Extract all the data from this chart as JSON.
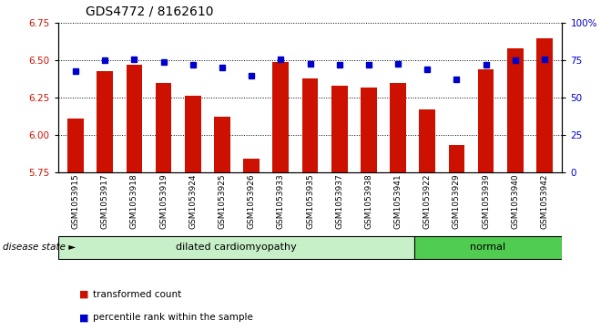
{
  "title": "GDS4772 / 8162610",
  "samples": [
    "GSM1053915",
    "GSM1053917",
    "GSM1053918",
    "GSM1053919",
    "GSM1053924",
    "GSM1053925",
    "GSM1053926",
    "GSM1053933",
    "GSM1053935",
    "GSM1053937",
    "GSM1053938",
    "GSM1053941",
    "GSM1053922",
    "GSM1053929",
    "GSM1053939",
    "GSM1053940",
    "GSM1053942"
  ],
  "bar_values": [
    6.11,
    6.43,
    6.47,
    6.35,
    6.26,
    6.12,
    5.84,
    6.49,
    6.38,
    6.33,
    6.32,
    6.35,
    6.17,
    5.93,
    6.44,
    6.58,
    6.65
  ],
  "dot_percentiles": [
    68,
    75,
    76,
    74,
    72,
    70,
    65,
    76,
    73,
    72,
    72,
    73,
    69,
    62,
    72,
    75,
    76
  ],
  "group_labels": [
    "dilated cardiomyopathy",
    "normal"
  ],
  "group_counts": [
    12,
    5
  ],
  "ylim_left": [
    5.75,
    6.75
  ],
  "ylim_right": [
    0,
    100
  ],
  "yticks_left": [
    5.75,
    6.0,
    6.25,
    6.5,
    6.75
  ],
  "yticks_right": [
    0,
    25,
    50,
    75,
    100
  ],
  "bar_color": "#cc1100",
  "dot_color": "#0000cc",
  "bg_plot": "#ffffff",
  "bg_samples": "#d4d4d4",
  "bg_dilated": "#c8f0c8",
  "bg_normal": "#50cc50",
  "disease_label": "disease state",
  "legend_bar": "transformed count",
  "legend_dot": "percentile rank within the sample",
  "title_fontsize": 10,
  "tick_fontsize": 7.5,
  "label_fontsize": 8
}
